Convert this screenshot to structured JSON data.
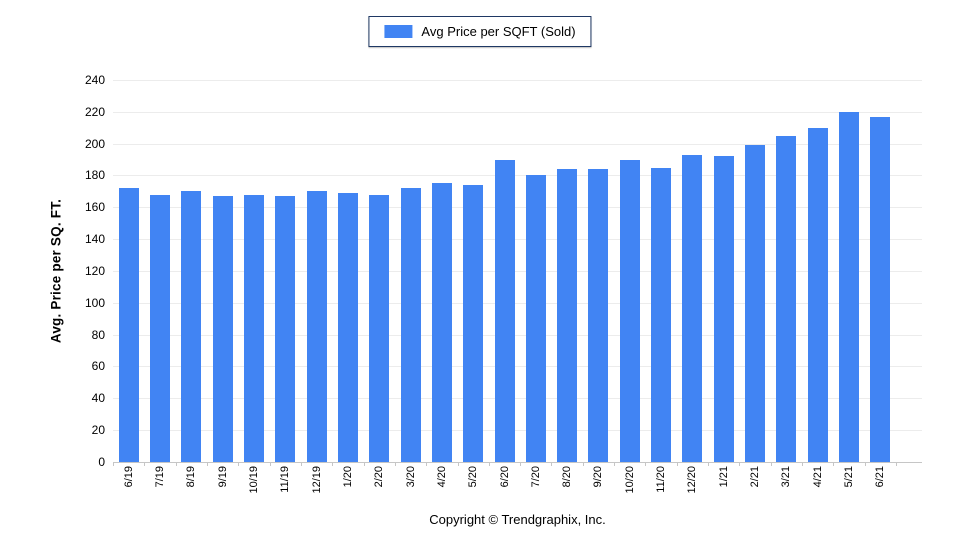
{
  "legend": {
    "label": "Avg Price per SQFT (Sold)"
  },
  "footer": {
    "copyright": "Copyright © Trendgraphix, Inc."
  },
  "colors": {
    "bar": "#4184f3",
    "legend_border": "#1f3864",
    "gridline": "#ececec",
    "axis_line": "#c6c6c6",
    "text": "#000000"
  },
  "chart_data": {
    "type": "bar",
    "title": "Avg Price per SQFT (Sold)",
    "series_name": "Avg Price per SQFT (Sold)",
    "categories": [
      "6/19",
      "7/19",
      "8/19",
      "9/19",
      "10/19",
      "11/19",
      "12/19",
      "1/20",
      "2/20",
      "3/20",
      "4/20",
      "5/20",
      "6/20",
      "7/20",
      "8/20",
      "9/20",
      "10/20",
      "11/20",
      "12/20",
      "1/21",
      "2/21",
      "3/21",
      "4/21",
      "5/21",
      "6/21"
    ],
    "values": [
      172,
      168,
      170,
      167,
      168,
      167,
      170,
      169,
      168,
      172,
      175,
      174,
      190,
      180,
      184,
      184,
      190,
      185,
      193,
      192,
      199,
      205,
      210,
      220,
      217
    ],
    "xlabel": "",
    "ylabel": "Avg. Price per SQ. FT.",
    "ylim": [
      0,
      240
    ],
    "ytick_step": 20,
    "yticks": [
      0,
      20,
      40,
      60,
      80,
      100,
      120,
      140,
      160,
      180,
      200,
      220,
      240
    ],
    "grid": true,
    "legend_position": "top-center"
  }
}
